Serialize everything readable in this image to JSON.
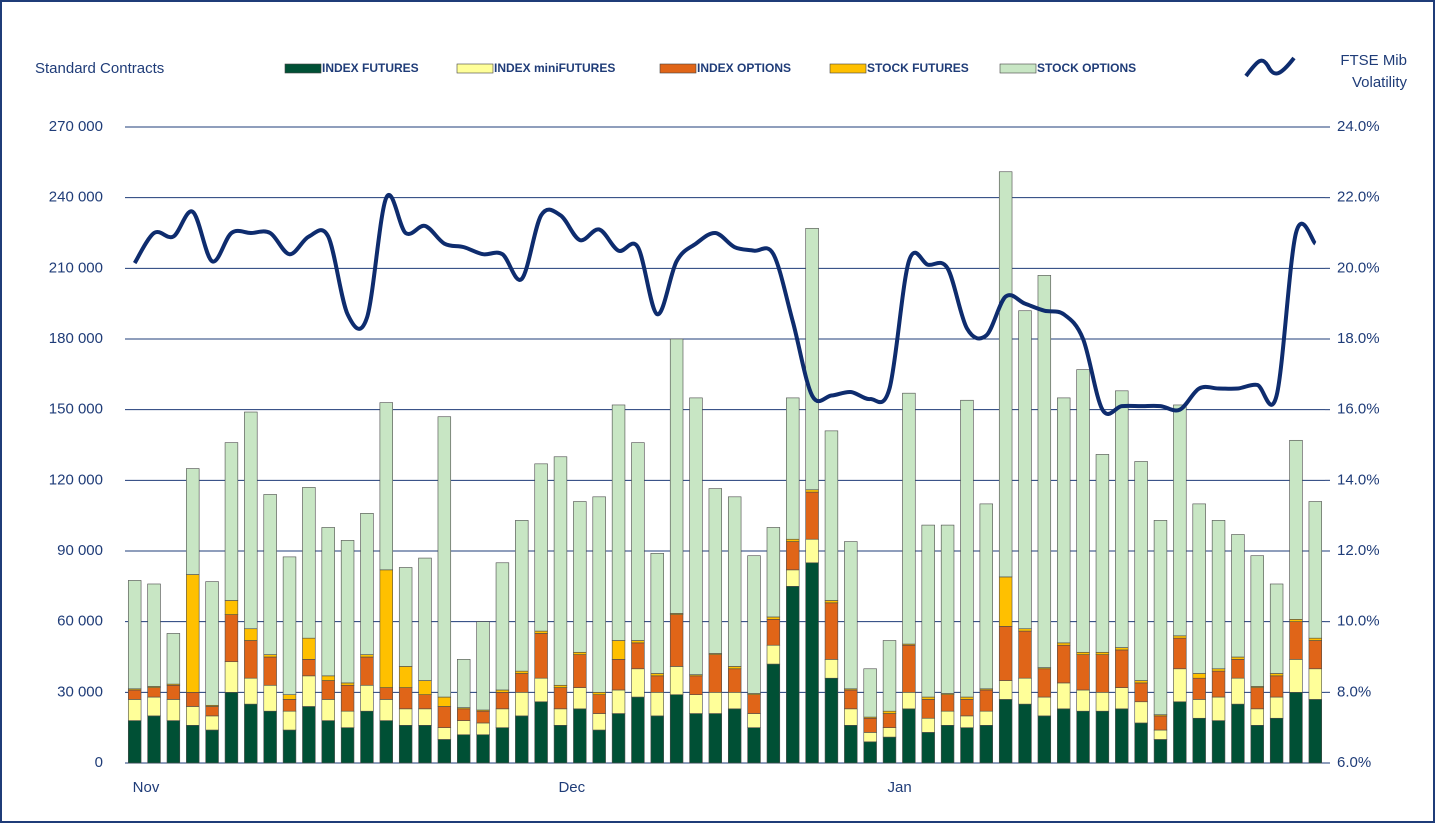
{
  "chart_data": {
    "type": "bar",
    "stacked": true,
    "y_label": "Standard Contracts",
    "categories": [
      "Nov",
      null,
      null,
      null,
      null,
      null,
      null,
      null,
      null,
      null,
      null,
      null,
      null,
      null,
      null,
      null,
      null,
      null,
      null,
      null,
      null,
      null,
      "Dec",
      null,
      null,
      null,
      null,
      null,
      null,
      null,
      null,
      null,
      null,
      null,
      null,
      null,
      null,
      null,
      null,
      "Jan",
      null,
      null,
      null,
      null,
      null,
      null,
      null,
      null,
      null,
      null,
      null,
      null,
      null,
      null,
      null,
      null,
      null,
      null,
      null,
      null,
      null,
      null
    ],
    "series": [
      {
        "name": "INDEX FUTURES",
        "color": "#005035",
        "values": [
          18000,
          20000,
          18000,
          16000,
          14000,
          30000,
          25000,
          22000,
          14000,
          24000,
          18000,
          15000,
          22000,
          18000,
          16000,
          16000,
          10000,
          12000,
          12000,
          15000,
          20000,
          26000,
          16000,
          23000,
          14000,
          21000,
          28000,
          20000,
          29000,
          21000,
          21000,
          23000,
          15000,
          42000,
          75000,
          85000,
          36000,
          16000,
          9000,
          11000,
          23000,
          13000,
          16000,
          15000,
          16000,
          27000,
          25000,
          20000,
          23000,
          22000,
          22000,
          23000,
          17000,
          10000,
          26000,
          19000,
          18000,
          25000,
          16000,
          19000,
          30000,
          27000
        ]
      },
      {
        "name": "INDEX miniFUTURES",
        "color": "#ffff99",
        "values": [
          9000,
          8000,
          9000,
          8000,
          6000,
          13000,
          11000,
          11000,
          8000,
          13000,
          9000,
          7000,
          11000,
          9000,
          7000,
          7000,
          5000,
          6000,
          5000,
          8000,
          10000,
          10000,
          7000,
          9000,
          7000,
          10000,
          12000,
          10000,
          12000,
          8000,
          9000,
          7000,
          6000,
          8000,
          7000,
          10000,
          8000,
          7000,
          4000,
          4000,
          7000,
          6000,
          6000,
          5000,
          6000,
          8000,
          11000,
          8000,
          11000,
          9000,
          8000,
          9000,
          9000,
          4000,
          14000,
          8000,
          10000,
          11000,
          7000,
          9000,
          14000,
          13000
        ]
      },
      {
        "name": "INDEX OPTIONS",
        "color": "#e06518",
        "values": [
          4000,
          4000,
          6000,
          6000,
          4000,
          20000,
          16000,
          12000,
          5000,
          7000,
          8000,
          11000,
          12000,
          5000,
          9000,
          6000,
          9000,
          5000,
          5000,
          7000,
          8000,
          19000,
          9000,
          14000,
          8000,
          13000,
          11000,
          7000,
          22000,
          8000,
          16000,
          10000,
          8000,
          11000,
          12000,
          20000,
          24000,
          8000,
          6000,
          6000,
          20000,
          8000,
          7000,
          7000,
          9000,
          23000,
          20000,
          12000,
          16000,
          15000,
          16000,
          16000,
          8000,
          6000,
          13000,
          9000,
          11000,
          8000,
          9000,
          9000,
          16000,
          12000
        ]
      },
      {
        "name": "STOCK FUTURES",
        "color": "#ffc000",
        "values": [
          500,
          500,
          500,
          50000,
          500,
          6000,
          5000,
          1000,
          2000,
          9000,
          2000,
          1000,
          1000,
          50000,
          9000,
          6000,
          4000,
          500,
          500,
          1000,
          1000,
          1000,
          1000,
          1000,
          1000,
          8000,
          1000,
          1000,
          500,
          500,
          500,
          1000,
          500,
          1000,
          1000,
          1000,
          1000,
          500,
          500,
          1000,
          500,
          1000,
          500,
          1000,
          500,
          21000,
          1000,
          500,
          1000,
          1000,
          1000,
          1000,
          1000,
          500,
          1000,
          2000,
          1000,
          1000,
          500,
          1000,
          1000,
          1000
        ]
      },
      {
        "name": "STOCK OPTIONS",
        "color": "#c8e6c4",
        "values": [
          46000,
          43500,
          21500,
          45000,
          52500,
          67000,
          92000,
          68000,
          58500,
          64000,
          63000,
          60500,
          60000,
          71000,
          42000,
          52000,
          119000,
          20500,
          37500,
          54000,
          64000,
          71000,
          97000,
          64000,
          83000,
          100000,
          84000,
          51000,
          116500,
          117500,
          70000,
          72000,
          58500,
          38000,
          60000,
          111000,
          72000,
          62500,
          20500,
          30000,
          106500,
          73000,
          71500,
          126000,
          78500,
          172000,
          135000,
          166500,
          104000,
          120000,
          84000,
          109000,
          93000,
          82500,
          98000,
          72000,
          63000,
          52000,
          55500,
          38000,
          76000,
          58000
        ]
      },
      {
        "name": "FTSE Mib Volatility",
        "color": "#0e2c6e",
        "type": "line",
        "axis": "y2",
        "values": [
          20.15,
          21.0,
          20.9,
          21.6,
          20.2,
          21.0,
          21.0,
          21.0,
          20.4,
          20.9,
          20.9,
          18.7,
          18.6,
          22.0,
          21.0,
          21.2,
          20.7,
          20.6,
          20.4,
          20.4,
          19.7,
          21.5,
          21.5,
          20.8,
          21.1,
          20.5,
          20.6,
          18.7,
          20.2,
          20.7,
          21.0,
          20.6,
          20.5,
          20.4,
          18.5,
          16.4,
          16.4,
          16.5,
          16.3,
          16.6,
          20.2,
          20.1,
          20.0,
          18.3,
          18.1,
          19.2,
          19.0,
          18.8,
          18.7,
          18.0,
          16.0,
          16.1,
          16.1,
          16.1,
          16.0,
          16.6,
          16.6,
          16.6,
          16.7,
          16.4,
          21.0,
          20.7
        ]
      }
    ],
    "ylim": [
      0,
      270000
    ],
    "yticks": [
      {
        "value": 0,
        "label": "0"
      },
      {
        "value": 30000,
        "label": "30 000"
      },
      {
        "value": 60000,
        "label": "60 000"
      },
      {
        "value": 90000,
        "label": "90 000"
      },
      {
        "value": 120000,
        "label": "120 000"
      },
      {
        "value": 150000,
        "label": "150 000"
      },
      {
        "value": 180000,
        "label": "180 000"
      },
      {
        "value": 210000,
        "label": "210 000"
      },
      {
        "value": 240000,
        "label": "240 000"
      },
      {
        "value": 270000,
        "label": "270 000"
      }
    ],
    "y2lim": [
      6,
      24
    ],
    "y2ticks": [
      {
        "value": 6,
        "label": "6.0%"
      },
      {
        "value": 8,
        "label": "8.0%"
      },
      {
        "value": 10,
        "label": "10.0%"
      },
      {
        "value": 12,
        "label": "12.0%"
      },
      {
        "value": 14,
        "label": "14.0%"
      },
      {
        "value": 16,
        "label": "16.0%"
      },
      {
        "value": 18,
        "label": "18.0%"
      },
      {
        "value": 20,
        "label": "20.0%"
      },
      {
        "value": 22,
        "label": "22.0%"
      },
      {
        "value": 24,
        "label": "24.0%"
      }
    ],
    "grid": true,
    "legend": "top"
  }
}
